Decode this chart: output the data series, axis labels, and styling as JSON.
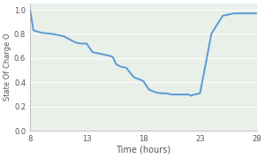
{
  "title": "",
  "xlabel": "Time (hours)",
  "ylabel": "State Of Charge O",
  "xlim": [
    8,
    28
  ],
  "ylim": [
    0,
    1.05
  ],
  "xticks": [
    8,
    13,
    18,
    23,
    28
  ],
  "yticks": [
    0,
    0.2,
    0.4,
    0.6,
    0.8,
    1
  ],
  "line_color": "#5b9bd5",
  "line_width": 1.4,
  "x": [
    8.0,
    8.3,
    9.0,
    10.0,
    11.0,
    12.0,
    12.5,
    13.0,
    13.5,
    14.0,
    14.5,
    15.0,
    15.3,
    15.6,
    16.0,
    16.5,
    17.0,
    17.2,
    17.5,
    17.8,
    18.0,
    18.5,
    19.0,
    19.5,
    20.0,
    20.5,
    21.0,
    21.5,
    22.0,
    22.2,
    22.5,
    23.0,
    23.5,
    24.0,
    25.0,
    26.0,
    27.0,
    28.0
  ],
  "y": [
    1.0,
    0.83,
    0.81,
    0.8,
    0.78,
    0.73,
    0.72,
    0.72,
    0.65,
    0.64,
    0.63,
    0.62,
    0.61,
    0.55,
    0.53,
    0.52,
    0.46,
    0.44,
    0.43,
    0.42,
    0.41,
    0.34,
    0.32,
    0.31,
    0.31,
    0.3,
    0.3,
    0.3,
    0.3,
    0.29,
    0.3,
    0.31,
    0.55,
    0.8,
    0.95,
    0.97,
    0.97,
    0.97
  ],
  "plot_bg_color": "#e9efe9",
  "figure_bg_color": "#ffffff",
  "grid_color": "#ffffff",
  "grid_linewidth": 0.8,
  "spine_color": "#aaaaaa",
  "tick_color": "#555555",
  "label_color": "#555555",
  "xlabel_fontsize": 7,
  "ylabel_fontsize": 6,
  "tick_fontsize": 6
}
